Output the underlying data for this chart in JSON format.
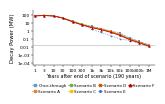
{
  "title": "",
  "xlabel": "Years after end of scenario (190 years)",
  "ylabel": "Decay Power (MW)",
  "xscale": "log",
  "yscale": "log",
  "ylim": [
    5e-05,
    500
  ],
  "xlim": [
    0.8,
    2000000
  ],
  "reference_line_y": 0.02,
  "x_ticks": [
    1,
    3,
    10,
    30,
    100,
    300,
    1000,
    3000,
    10000,
    30000,
    100000,
    300000,
    1000000
  ],
  "x_tick_labels": [
    "1",
    "3",
    "10",
    "30",
    "100",
    "300",
    "1k",
    "3k",
    "10k",
    "30k",
    "100k",
    "300k",
    "1M"
  ],
  "y_ticks": [
    0.0001,
    0.001,
    0.01,
    0.1,
    1,
    10,
    100
  ],
  "y_tick_labels": [
    "1e-04",
    "1e-03",
    "0.01",
    "0.1",
    "1",
    "10",
    "100"
  ],
  "series": [
    {
      "label": "Once-through",
      "color": "#5b9bd5",
      "linestyle": "--",
      "marker": "s",
      "markersize": 1.5,
      "linewidth": 0.5,
      "y": [
        92,
        100,
        88,
        50,
        18,
        8.0,
        4.0,
        2.2,
        1.1,
        0.55,
        0.14,
        0.055,
        0.019
      ]
    },
    {
      "label": "Scenario A",
      "color": "#ed7d31",
      "linestyle": "-",
      "marker": "s",
      "markersize": 1.5,
      "linewidth": 0.5,
      "y": [
        89,
        98,
        86,
        48,
        17,
        7.5,
        3.5,
        2.0,
        0.95,
        0.4,
        0.11,
        0.048,
        0.017
      ]
    },
    {
      "label": "Scenario B",
      "color": "#70ad47",
      "linestyle": "-",
      "marker": "s",
      "markersize": 1.5,
      "linewidth": 0.5,
      "y": [
        87,
        97,
        85,
        47,
        16.5,
        7.2,
        3.3,
        1.85,
        0.88,
        0.37,
        0.105,
        0.045,
        0.016
      ]
    },
    {
      "label": "Scenario C",
      "color": "#ffc000",
      "linestyle": "-",
      "marker": "s",
      "markersize": 1.5,
      "linewidth": 0.5,
      "y": [
        86,
        96,
        84,
        46,
        16,
        7.0,
        3.1,
        1.75,
        0.82,
        0.35,
        0.1,
        0.043,
        0.015
      ]
    },
    {
      "label": "Scenario D",
      "color": "#c55a11",
      "linestyle": "-",
      "marker": "s",
      "markersize": 1.5,
      "linewidth": 0.5,
      "y": [
        85,
        95,
        83,
        45,
        15.5,
        6.8,
        3.0,
        1.65,
        0.78,
        0.33,
        0.095,
        0.04,
        0.014
      ]
    },
    {
      "label": "Scenario E",
      "color": "#4472c4",
      "linestyle": ":",
      "marker": "o",
      "markersize": 1.2,
      "linewidth": 0.5,
      "y": [
        84,
        94,
        82,
        44,
        15,
        6.5,
        1.8,
        0.7,
        0.28,
        0.11,
        0.065,
        0.03,
        0.012
      ]
    },
    {
      "label": "Scenario F",
      "color": "#c00000",
      "linestyle": "-",
      "marker": "^",
      "markersize": 1.8,
      "linewidth": 0.5,
      "y": [
        83,
        93,
        81,
        43,
        14.8,
        6.3,
        2.8,
        1.6,
        0.72,
        0.3,
        0.082,
        0.036,
        0.013
      ]
    }
  ],
  "legend_fontsize": 3.0,
  "tick_fontsize": 3.2,
  "label_fontsize": 3.5,
  "axis_label_fontsize": 3.8,
  "background_color": "#ffffff",
  "grid_color": "#b0b0b0"
}
